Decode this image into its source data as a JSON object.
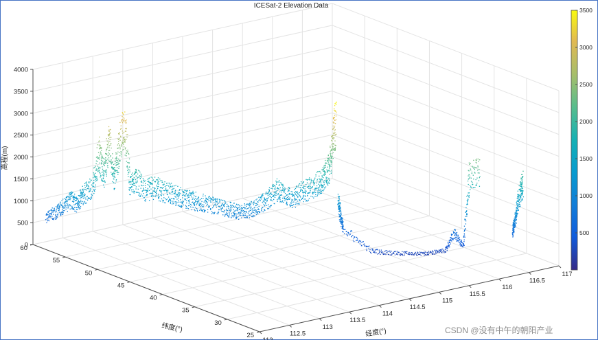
{
  "chart_data": {
    "type": "scatter",
    "title": "ICESat-2 Elevation Data",
    "xlabel": "经度(°)",
    "ylabel": "纬度(°)",
    "zlabel": "高程(m)",
    "xlim": [
      112,
      117
    ],
    "ylim": [
      25,
      60
    ],
    "zlim": [
      0,
      4000
    ],
    "x_ticks": [
      "112",
      "112.5",
      "113",
      "113.5",
      "114",
      "114.5",
      "115",
      "115.5",
      "116",
      "116.5",
      "117"
    ],
    "y_ticks": [
      "25",
      "30",
      "35",
      "40",
      "45",
      "50",
      "55",
      "60"
    ],
    "z_ticks": [
      "0",
      "500",
      "1000",
      "1500",
      "2000",
      "2500",
      "3000",
      "3500",
      "4000"
    ],
    "colorbar": {
      "colormap": "parula",
      "range": [
        0,
        3500
      ],
      "ticks": [
        "500",
        "1000",
        "1500",
        "2000",
        "2500",
        "3000",
        "3500"
      ]
    },
    "grid": true,
    "series": [
      {
        "track": 1,
        "points": [
          [
            112.05,
            58.5,
            700
          ],
          [
            112.1,
            57.5,
            850
          ],
          [
            112.15,
            56.8,
            1000
          ],
          [
            112.2,
            56.0,
            1200
          ],
          [
            112.25,
            55.5,
            1100
          ],
          [
            112.3,
            55.0,
            1350
          ],
          [
            112.4,
            54.5,
            1500
          ],
          [
            112.45,
            54.0,
            2300
          ],
          [
            112.5,
            53.7,
            1800
          ],
          [
            112.55,
            53.4,
            2600
          ],
          [
            112.6,
            53.1,
            1700
          ],
          [
            112.65,
            52.8,
            2400
          ],
          [
            112.7,
            52.4,
            3000
          ],
          [
            112.75,
            52.0,
            1600
          ],
          [
            112.8,
            51.5,
            1700
          ],
          [
            112.9,
            51.0,
            1500
          ],
          [
            113.0,
            50.5,
            1550
          ],
          [
            113.1,
            50.0,
            1450
          ],
          [
            113.2,
            49.5,
            1400
          ],
          [
            113.3,
            49.0,
            1300
          ],
          [
            113.4,
            48.5,
            1250
          ],
          [
            113.5,
            48.0,
            1200
          ],
          [
            113.6,
            47.3,
            1150
          ],
          [
            113.7,
            46.6,
            1100
          ],
          [
            113.8,
            46.0,
            1050
          ],
          [
            113.9,
            45.5,
            1000
          ],
          [
            114.0,
            45.0,
            1050
          ],
          [
            114.1,
            44.5,
            1150
          ],
          [
            114.2,
            44.0,
            1300
          ],
          [
            114.3,
            43.6,
            1500
          ],
          [
            114.4,
            43.2,
            1350
          ],
          [
            114.5,
            42.8,
            1300
          ],
          [
            114.6,
            42.4,
            1450
          ],
          [
            114.7,
            42.0,
            1500
          ],
          [
            114.8,
            41.6,
            1650
          ],
          [
            114.85,
            41.3,
            1800
          ],
          [
            114.9,
            41.0,
            2000
          ],
          [
            114.93,
            40.8,
            2700
          ],
          [
            114.96,
            40.6,
            3000
          ]
        ]
      },
      {
        "track": 2,
        "points": [
          [
            114.95,
            40.2,
            1300
          ],
          [
            114.95,
            39.8,
            900
          ],
          [
            114.96,
            39.5,
            650
          ],
          [
            115.0,
            35.5,
            350
          ],
          [
            115.3,
            34.2,
            280
          ],
          [
            115.6,
            33.0,
            250
          ],
          [
            115.85,
            32.0,
            300
          ],
          [
            115.95,
            31.5,
            700
          ],
          [
            116.05,
            31.0,
            400
          ],
          [
            116.1,
            30.6,
            2000
          ],
          [
            116.25,
            30.3,
            2100
          ]
        ]
      },
      {
        "track": 3,
        "points": [
          [
            116.6,
            28.5,
            700
          ],
          [
            116.62,
            28.4,
            900
          ],
          [
            116.65,
            28.3,
            1250
          ],
          [
            116.7,
            28.2,
            1600
          ],
          [
            116.73,
            28.1,
            1800
          ]
        ]
      }
    ]
  },
  "watermark": "CSDN @没有中午的朝阳产业"
}
